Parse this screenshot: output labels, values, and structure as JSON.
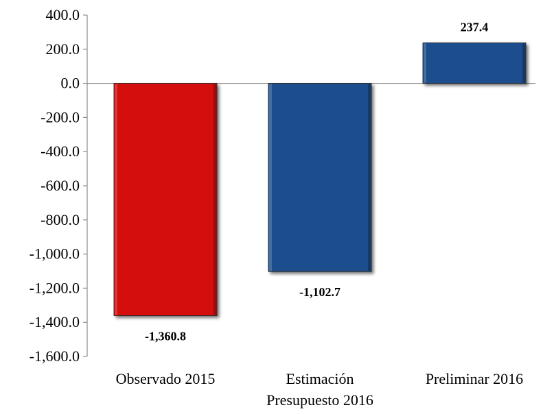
{
  "chart_data": {
    "type": "bar",
    "categories": [
      [
        "Observado 2015"
      ],
      [
        "Estimación",
        "Presupuesto 2016"
      ],
      [
        "Preliminar 2016"
      ]
    ],
    "values": [
      -1360.8,
      -1102.7,
      237.4
    ],
    "value_labels": [
      "-1,360.8",
      "-1,102.7",
      "237.4"
    ],
    "bar_colors": [
      "#d40a0a",
      "#1f4e8c",
      "#1f4e8c"
    ],
    "ylim": [
      -1600,
      400
    ],
    "yticks": [
      400,
      200,
      0,
      -200,
      -400,
      -600,
      -800,
      -1000,
      -1200,
      -1400,
      -1600
    ],
    "ytick_labels": [
      "400.0",
      "200.0",
      "0.0",
      "-200.0",
      "-400.0",
      "-600.0",
      "-800.0",
      "-1,000.0",
      "-1,200.0",
      "-1,400.0",
      "-1,600.0"
    ],
    "grid": false,
    "legend": "none"
  }
}
